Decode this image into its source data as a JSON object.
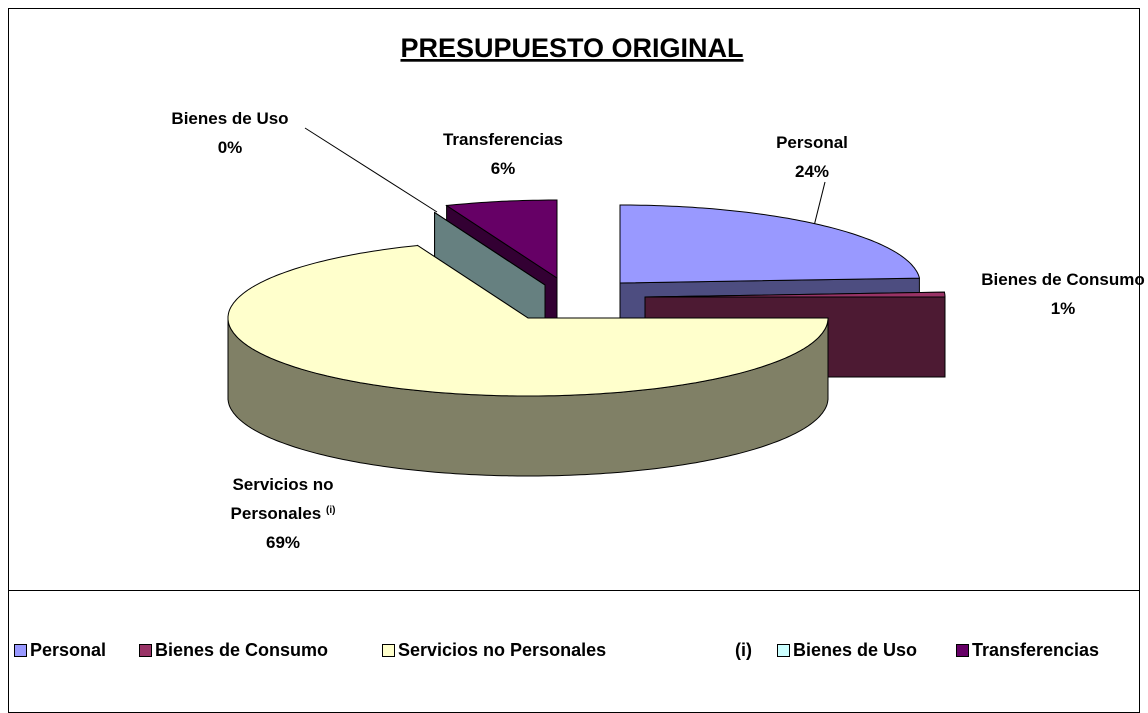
{
  "chart_data": {
    "type": "pie3d",
    "title": "PRESUPUESTO  ORIGINAL",
    "categories": [
      "Personal",
      "Bienes de Consumo",
      "Servicios no Personales",
      "Bienes de Uso",
      "Transferencias"
    ],
    "values": [
      24,
      1,
      69,
      0,
      6
    ],
    "value_labels": [
      "24%",
      "1%",
      "69%",
      "0%",
      "6%"
    ],
    "colors": [
      "#9999ff",
      "#993366",
      "#ffffcc",
      "#ccffff",
      "#660066"
    ],
    "footnote_marker": "(i)",
    "legend": "bottom"
  }
}
